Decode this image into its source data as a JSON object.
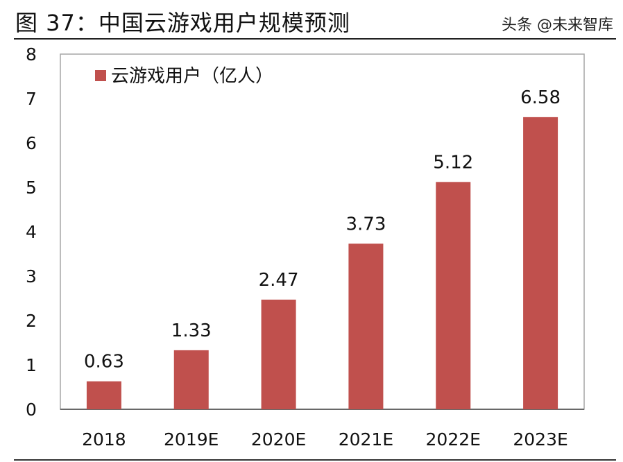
{
  "title": "图 37：中国云游戏用户规模预测",
  "watermark": "头条 @未来智库",
  "chart_data": {
    "type": "bar",
    "categories": [
      "2018",
      "2019E",
      "2020E",
      "2021E",
      "2022E",
      "2023E"
    ],
    "series": [
      {
        "name": "云游戏用户（亿人）",
        "values": [
          0.63,
          1.33,
          2.47,
          3.73,
          5.12,
          6.58
        ],
        "color": "#C0504D"
      }
    ],
    "data_labels": [
      "0.63",
      "1.33",
      "2.47",
      "3.73",
      "5.12",
      "6.58"
    ],
    "yticks": [
      "0",
      "1",
      "2",
      "3",
      "4",
      "5",
      "6",
      "7",
      "8"
    ],
    "ylim": [
      0,
      8
    ],
    "grid": false,
    "legend": "top-left"
  }
}
